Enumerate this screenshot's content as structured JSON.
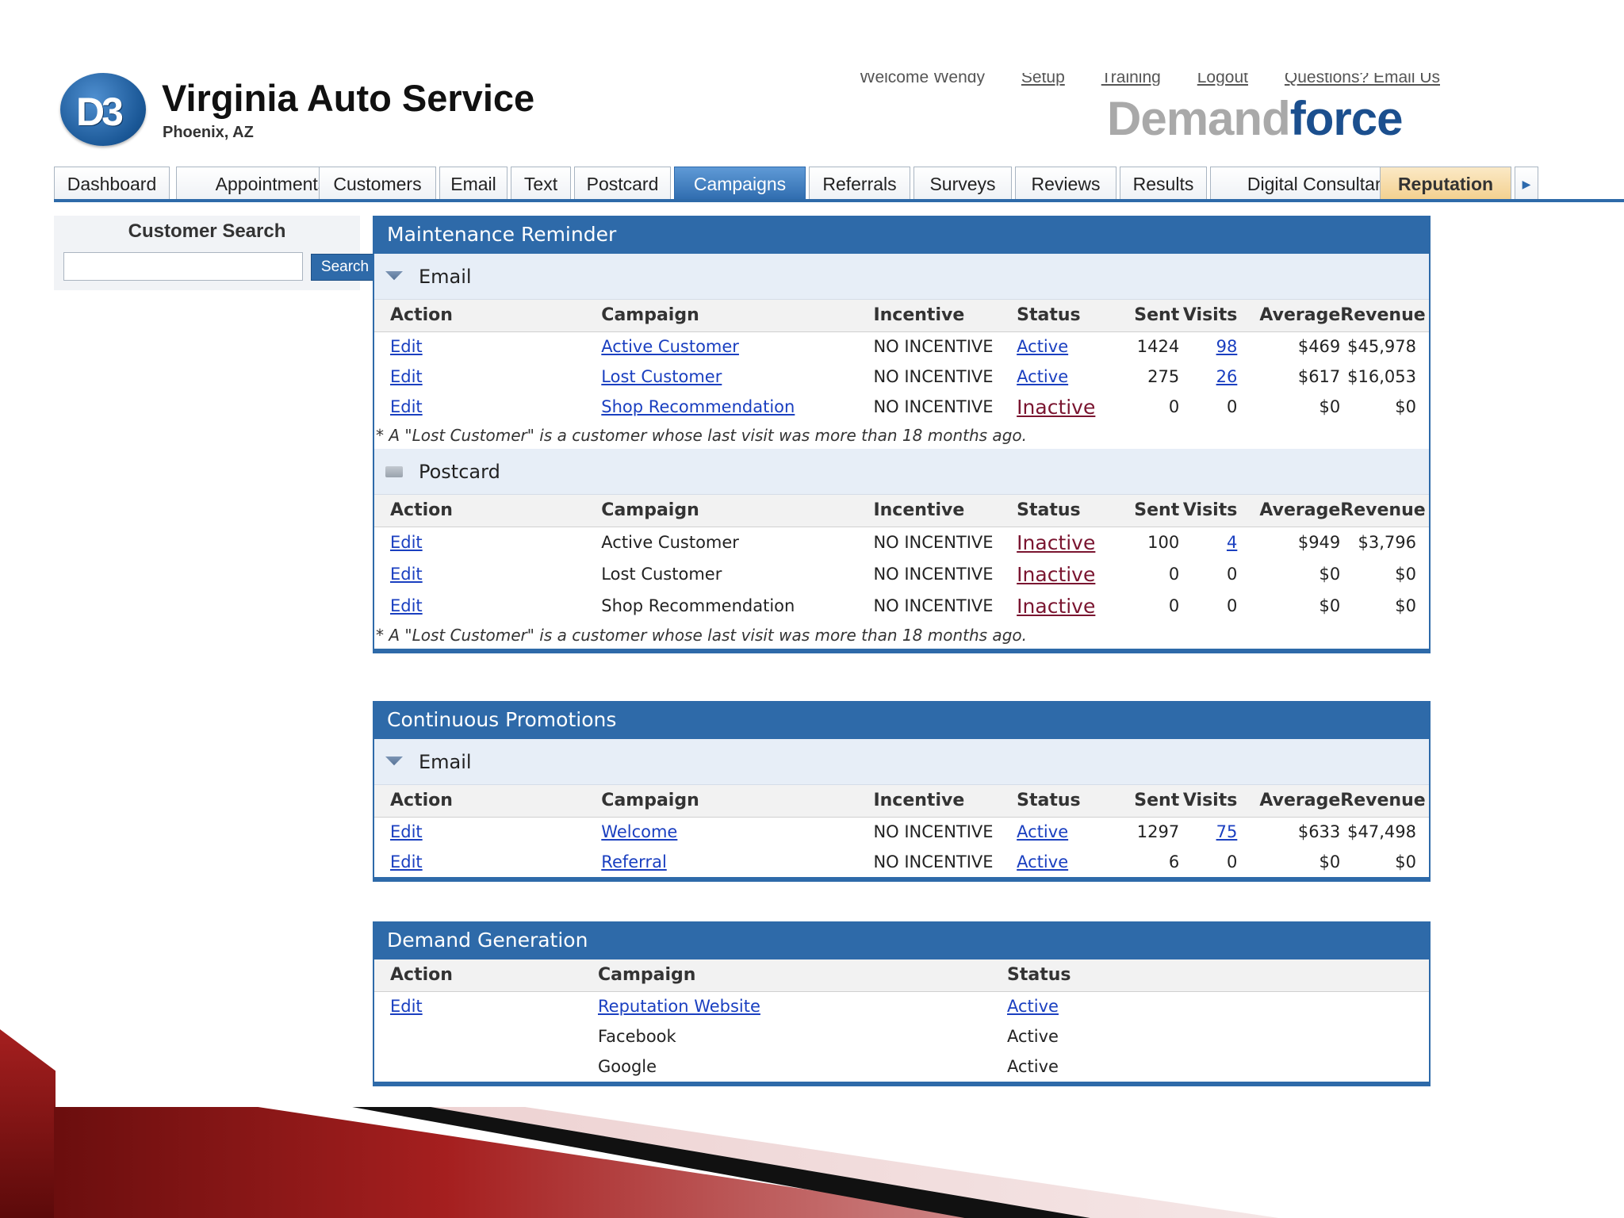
{
  "header": {
    "logo_text": "D3",
    "company_name": "Virginia Auto Service",
    "company_location": "Phoenix, AZ",
    "top_links": [
      "Welcome Wendy",
      "Setup",
      "Training",
      "Logout",
      "Questions? Email Us"
    ],
    "brand_part1": "Demand",
    "brand_part2": "force"
  },
  "nav": {
    "tabs": [
      "Dashboard",
      "Appointments",
      "Customers",
      "Email",
      "Text",
      "Postcard",
      "Campaigns",
      "Referrals",
      "Surveys",
      "Reviews",
      "Results",
      "Digital Consultant",
      "Reputation"
    ],
    "active_tab": "Campaigns",
    "more_arrow": "▶"
  },
  "sidebar": {
    "title": "Customer Search",
    "search_value": "",
    "search_button": "Search"
  },
  "columns": {
    "action": "Action",
    "campaign": "Campaign",
    "incentive": "Incentive",
    "status": "Status",
    "sent": "Sent",
    "visits": "Visits",
    "average": "Average",
    "revenue": "Revenue"
  },
  "maintenance_reminder": {
    "title": "Maintenance Reminder",
    "email": {
      "label": "Email",
      "rows": [
        {
          "action": "Edit",
          "campaign": "Active Customer",
          "incentive": "NO INCENTIVE",
          "status": "Active",
          "sent": "1424",
          "visits": "98",
          "average": "$469",
          "revenue": "$45,978"
        },
        {
          "action": "Edit",
          "campaign": "Lost Customer",
          "incentive": "NO INCENTIVE",
          "status": "Active",
          "sent": "275",
          "visits": "26",
          "average": "$617",
          "revenue": "$16,053"
        },
        {
          "action": "Edit",
          "campaign": "Shop Recommendation",
          "incentive": "NO INCENTIVE",
          "status": "Inactive",
          "sent": "0",
          "visits": "0",
          "average": "$0",
          "revenue": "$0"
        }
      ],
      "note": "* A \"Lost Customer\" is a customer whose last visit was more than 18 months ago."
    },
    "postcard": {
      "label": "Postcard",
      "rows": [
        {
          "action": "Edit",
          "campaign": "Active Customer",
          "incentive": "NO INCENTIVE",
          "status": "Inactive",
          "sent": "100",
          "visits": "4",
          "average": "$949",
          "revenue": "$3,796"
        },
        {
          "action": "Edit",
          "campaign": "Lost Customer",
          "incentive": "NO INCENTIVE",
          "status": "Inactive",
          "sent": "0",
          "visits": "0",
          "average": "$0",
          "revenue": "$0"
        },
        {
          "action": "Edit",
          "campaign": "Shop Recommendation",
          "incentive": "NO INCENTIVE",
          "status": "Inactive",
          "sent": "0",
          "visits": "0",
          "average": "$0",
          "revenue": "$0"
        }
      ],
      "note": "* A \"Lost Customer\" is a customer whose last visit was more than 18 months ago."
    }
  },
  "continuous_promotions": {
    "title": "Continuous Promotions",
    "email": {
      "label": "Email",
      "rows": [
        {
          "action": "Edit",
          "campaign": "Welcome",
          "incentive": "NO INCENTIVE",
          "status": "Active",
          "sent": "1297",
          "visits": "75",
          "average": "$633",
          "revenue": "$47,498"
        },
        {
          "action": "Edit",
          "campaign": "Referral",
          "incentive": "NO INCENTIVE",
          "status": "Active",
          "sent": "6",
          "visits": "0",
          "average": "$0",
          "revenue": "$0"
        }
      ]
    }
  },
  "demand_generation": {
    "title": "Demand Generation",
    "rows": [
      {
        "action": "Edit",
        "campaign": "Reputation Website",
        "status": "Active"
      },
      {
        "action": "",
        "campaign": "Facebook",
        "status": "Active"
      },
      {
        "action": "",
        "campaign": "Google",
        "status": "Active"
      }
    ]
  },
  "colors": {
    "nav_blue": "#2e6aa9",
    "link_blue": "#1a3fc0",
    "inactive_red": "#7a1530",
    "reputation_tab": "#f3cf8c"
  }
}
